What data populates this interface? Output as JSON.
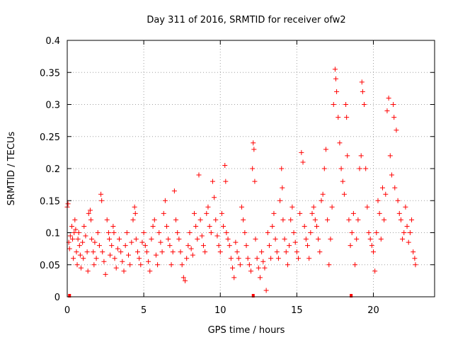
{
  "chart_data": {
    "type": "scatter",
    "title": "Day 311 of 2016, SRMTID for receiver ofw2",
    "xlabel": "GPS time / hours",
    "ylabel": "SRMTID / TECUs",
    "xlim": [
      0,
      24
    ],
    "ylim": [
      0,
      0.4
    ],
    "xticks": [
      0,
      5,
      10,
      15,
      20
    ],
    "xtick_labels": [
      "0",
      "5",
      "10",
      "15",
      "20"
    ],
    "yticks": [
      0,
      0.05,
      0.1,
      0.15,
      0.2,
      0.25,
      0.3,
      0.35,
      0.4
    ],
    "ytick_labels": [
      "0",
      "0.05",
      "0.1",
      "0.15",
      "0.2",
      "0.25",
      "0.3",
      "0.35",
      "0.4"
    ],
    "grid": true,
    "marker": "plus",
    "color": "#ff0000",
    "gap_markers_x": [
      0.15,
      12.15,
      18.55
    ],
    "series": [
      {
        "name": "SRMTID",
        "points": [
          [
            0.0,
            0.14
          ],
          [
            0.05,
            0.145
          ],
          [
            0.1,
            0.085
          ],
          [
            0.15,
            0.075
          ],
          [
            0.2,
            0.095
          ],
          [
            0.3,
            0.11
          ],
          [
            0.35,
            0.09
          ],
          [
            0.4,
            0.06
          ],
          [
            0.45,
            0.1
          ],
          [
            0.5,
            0.12
          ],
          [
            0.55,
            0.105
          ],
          [
            0.6,
            0.07
          ],
          [
            0.65,
            0.05
          ],
          [
            0.7,
            0.09
          ],
          [
            0.75,
            0.1
          ],
          [
            0.8,
            0.08
          ],
          [
            0.85,
            0.065
          ],
          [
            0.9,
            0.045
          ],
          [
            1.0,
            0.085
          ],
          [
            1.05,
            0.06
          ],
          [
            1.1,
            0.11
          ],
          [
            1.2,
            0.095
          ],
          [
            1.3,
            0.07
          ],
          [
            1.35,
            0.04
          ],
          [
            1.4,
            0.13
          ],
          [
            1.5,
            0.135
          ],
          [
            1.55,
            0.12
          ],
          [
            1.6,
            0.09
          ],
          [
            1.7,
            0.07
          ],
          [
            1.75,
            0.05
          ],
          [
            1.8,
            0.085
          ],
          [
            1.9,
            0.06
          ],
          [
            2.0,
            0.1
          ],
          [
            2.1,
            0.08
          ],
          [
            2.2,
            0.16
          ],
          [
            2.25,
            0.15
          ],
          [
            2.3,
            0.07
          ],
          [
            2.4,
            0.055
          ],
          [
            2.5,
            0.035
          ],
          [
            2.6,
            0.12
          ],
          [
            2.7,
            0.1
          ],
          [
            2.75,
            0.09
          ],
          [
            2.8,
            0.065
          ],
          [
            2.9,
            0.08
          ],
          [
            3.0,
            0.11
          ],
          [
            3.05,
            0.1
          ],
          [
            3.1,
            0.06
          ],
          [
            3.2,
            0.045
          ],
          [
            3.3,
            0.075
          ],
          [
            3.4,
            0.09
          ],
          [
            3.5,
            0.07
          ],
          [
            3.6,
            0.055
          ],
          [
            3.7,
            0.04
          ],
          [
            3.8,
            0.08
          ],
          [
            3.9,
            0.1
          ],
          [
            4.0,
            0.065
          ],
          [
            4.1,
            0.05
          ],
          [
            4.2,
            0.085
          ],
          [
            4.3,
            0.12
          ],
          [
            4.4,
            0.14
          ],
          [
            4.45,
            0.13
          ],
          [
            4.5,
            0.09
          ],
          [
            4.6,
            0.07
          ],
          [
            4.7,
            0.06
          ],
          [
            4.8,
            0.05
          ],
          [
            4.9,
            0.085
          ],
          [
            5.0,
            0.1
          ],
          [
            5.1,
            0.08
          ],
          [
            5.2,
            0.07
          ],
          [
            5.3,
            0.055
          ],
          [
            5.4,
            0.04
          ],
          [
            5.5,
            0.09
          ],
          [
            5.6,
            0.11
          ],
          [
            5.7,
            0.12
          ],
          [
            5.8,
            0.065
          ],
          [
            5.9,
            0.05
          ],
          [
            6.0,
            0.1
          ],
          [
            6.1,
            0.085
          ],
          [
            6.2,
            0.07
          ],
          [
            6.3,
            0.13
          ],
          [
            6.4,
            0.15
          ],
          [
            6.5,
            0.11
          ],
          [
            6.6,
            0.09
          ],
          [
            6.7,
            0.08
          ],
          [
            6.8,
            0.05
          ],
          [
            6.9,
            0.07
          ],
          [
            7.0,
            0.165
          ],
          [
            7.1,
            0.12
          ],
          [
            7.2,
            0.1
          ],
          [
            7.3,
            0.09
          ],
          [
            7.4,
            0.07
          ],
          [
            7.5,
            0.05
          ],
          [
            7.6,
            0.03
          ],
          [
            7.7,
            0.025
          ],
          [
            7.8,
            0.06
          ],
          [
            7.9,
            0.08
          ],
          [
            8.0,
            0.1
          ],
          [
            8.1,
            0.075
          ],
          [
            8.2,
            0.065
          ],
          [
            8.3,
            0.13
          ],
          [
            8.4,
            0.11
          ],
          [
            8.5,
            0.09
          ],
          [
            8.6,
            0.19
          ],
          [
            8.7,
            0.12
          ],
          [
            8.8,
            0.095
          ],
          [
            8.9,
            0.08
          ],
          [
            9.0,
            0.07
          ],
          [
            9.1,
            0.13
          ],
          [
            9.2,
            0.14
          ],
          [
            9.3,
            0.11
          ],
          [
            9.4,
            0.1
          ],
          [
            9.5,
            0.18
          ],
          [
            9.6,
            0.155
          ],
          [
            9.7,
            0.12
          ],
          [
            9.8,
            0.095
          ],
          [
            9.9,
            0.08
          ],
          [
            10.0,
            0.07
          ],
          [
            10.1,
            0.13
          ],
          [
            10.2,
            0.11
          ],
          [
            10.3,
            0.205
          ],
          [
            10.35,
            0.18
          ],
          [
            10.4,
            0.1
          ],
          [
            10.5,
            0.09
          ],
          [
            10.6,
            0.08
          ],
          [
            10.7,
            0.06
          ],
          [
            10.8,
            0.045
          ],
          [
            10.9,
            0.03
          ],
          [
            11.0,
            0.085
          ],
          [
            11.1,
            0.07
          ],
          [
            11.2,
            0.06
          ],
          [
            11.3,
            0.05
          ],
          [
            11.4,
            0.14
          ],
          [
            11.5,
            0.12
          ],
          [
            11.6,
            0.1
          ],
          [
            11.7,
            0.08
          ],
          [
            11.8,
            0.06
          ],
          [
            11.9,
            0.05
          ],
          [
            12.0,
            0.04
          ],
          [
            12.1,
            0.2
          ],
          [
            12.15,
            0.24
          ],
          [
            12.2,
            0.23
          ],
          [
            12.25,
            0.18
          ],
          [
            12.3,
            0.09
          ],
          [
            12.4,
            0.06
          ],
          [
            12.5,
            0.045
          ],
          [
            12.6,
            0.03
          ],
          [
            12.7,
            0.07
          ],
          [
            12.8,
            0.055
          ],
          [
            12.9,
            0.045
          ],
          [
            13.0,
            0.01
          ],
          [
            13.1,
            0.1
          ],
          [
            13.2,
            0.08
          ],
          [
            13.3,
            0.06
          ],
          [
            13.4,
            0.11
          ],
          [
            13.5,
            0.13
          ],
          [
            13.6,
            0.09
          ],
          [
            13.7,
            0.07
          ],
          [
            13.8,
            0.06
          ],
          [
            13.9,
            0.15
          ],
          [
            14.0,
            0.2
          ],
          [
            14.05,
            0.17
          ],
          [
            14.1,
            0.12
          ],
          [
            14.2,
            0.09
          ],
          [
            14.3,
            0.07
          ],
          [
            14.4,
            0.05
          ],
          [
            14.5,
            0.08
          ],
          [
            14.6,
            0.12
          ],
          [
            14.7,
            0.14
          ],
          [
            14.8,
            0.1
          ],
          [
            14.9,
            0.085
          ],
          [
            15.0,
            0.07
          ],
          [
            15.1,
            0.06
          ],
          [
            15.2,
            0.13
          ],
          [
            15.3,
            0.225
          ],
          [
            15.4,
            0.21
          ],
          [
            15.5,
            0.11
          ],
          [
            15.6,
            0.09
          ],
          [
            15.7,
            0.08
          ],
          [
            15.8,
            0.06
          ],
          [
            15.9,
            0.1
          ],
          [
            16.0,
            0.13
          ],
          [
            16.1,
            0.14
          ],
          [
            16.2,
            0.12
          ],
          [
            16.3,
            0.11
          ],
          [
            16.4,
            0.09
          ],
          [
            16.5,
            0.07
          ],
          [
            16.6,
            0.15
          ],
          [
            16.7,
            0.16
          ],
          [
            16.8,
            0.2
          ],
          [
            16.9,
            0.23
          ],
          [
            17.0,
            0.12
          ],
          [
            17.1,
            0.05
          ],
          [
            17.2,
            0.09
          ],
          [
            17.3,
            0.14
          ],
          [
            17.4,
            0.3
          ],
          [
            17.5,
            0.355
          ],
          [
            17.55,
            0.34
          ],
          [
            17.6,
            0.32
          ],
          [
            17.7,
            0.28
          ],
          [
            17.8,
            0.24
          ],
          [
            17.9,
            0.2
          ],
          [
            18.0,
            0.18
          ],
          [
            18.1,
            0.16
          ],
          [
            18.2,
            0.3
          ],
          [
            18.25,
            0.28
          ],
          [
            18.3,
            0.22
          ],
          [
            18.4,
            0.12
          ],
          [
            18.5,
            0.08
          ],
          [
            18.6,
            0.1
          ],
          [
            18.7,
            0.13
          ],
          [
            18.8,
            0.05
          ],
          [
            18.9,
            0.09
          ],
          [
            19.0,
            0.12
          ],
          [
            19.1,
            0.2
          ],
          [
            19.2,
            0.22
          ],
          [
            19.25,
            0.335
          ],
          [
            19.3,
            0.32
          ],
          [
            19.4,
            0.3
          ],
          [
            19.5,
            0.2
          ],
          [
            19.6,
            0.14
          ],
          [
            19.7,
            0.1
          ],
          [
            19.8,
            0.09
          ],
          [
            19.9,
            0.08
          ],
          [
            20.0,
            0.07
          ],
          [
            20.1,
            0.04
          ],
          [
            20.2,
            0.1
          ],
          [
            20.3,
            0.15
          ],
          [
            20.4,
            0.13
          ],
          [
            20.5,
            0.09
          ],
          [
            20.6,
            0.17
          ],
          [
            20.7,
            0.12
          ],
          [
            20.8,
            0.16
          ],
          [
            20.9,
            0.29
          ],
          [
            21.0,
            0.31
          ],
          [
            21.1,
            0.22
          ],
          [
            21.2,
            0.19
          ],
          [
            21.3,
            0.3
          ],
          [
            21.35,
            0.28
          ],
          [
            21.4,
            0.17
          ],
          [
            21.5,
            0.26
          ],
          [
            21.6,
            0.15
          ],
          [
            21.7,
            0.13
          ],
          [
            21.8,
            0.12
          ],
          [
            21.9,
            0.09
          ],
          [
            22.0,
            0.1
          ],
          [
            22.1,
            0.14
          ],
          [
            22.2,
            0.11
          ],
          [
            22.3,
            0.085
          ],
          [
            22.4,
            0.1
          ],
          [
            22.5,
            0.12
          ],
          [
            22.6,
            0.07
          ],
          [
            22.7,
            0.06
          ],
          [
            22.75,
            0.05
          ]
        ]
      }
    ]
  }
}
